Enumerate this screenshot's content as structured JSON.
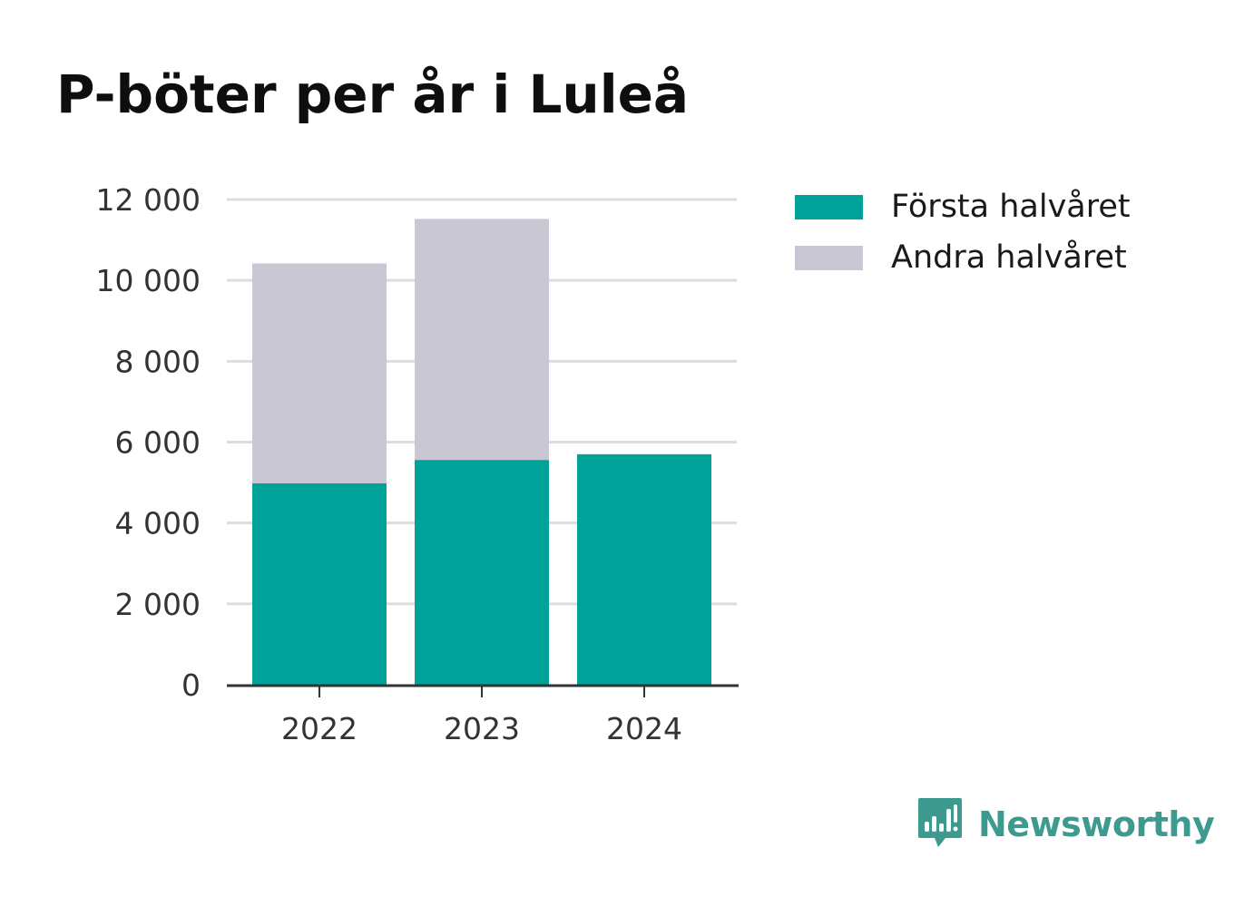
{
  "title": "P-böter per år i Luleå",
  "brand": {
    "name": "Newsworthy",
    "logo_icon": "newsworthy-logo-icon",
    "color": "#3d9a8f"
  },
  "colors": {
    "first_half": "#00a39a",
    "second_half": "#c8c7d3",
    "grid": "#dddddd",
    "axis": "#333333",
    "text": "#333333"
  },
  "chart_data": {
    "type": "bar",
    "stacked": true,
    "title": "P-böter per år i Luleå",
    "categories": [
      "2022",
      "2023",
      "2024"
    ],
    "series": [
      {
        "name": "Första halvåret",
        "values": [
          4980,
          5560,
          5700
        ]
      },
      {
        "name": "Andra halvåret",
        "values": [
          5440,
          5960,
          null
        ]
      }
    ],
    "ylim": [
      0,
      12000
    ],
    "yticks": [
      0,
      2000,
      4000,
      6000,
      8000,
      10000,
      12000
    ],
    "ytick_labels": [
      "0",
      "2 000",
      "4 000",
      "6 000",
      "8 000",
      "10 000",
      "12 000"
    ],
    "xlabel": "",
    "ylabel": "",
    "grid": true,
    "legend_position": "top-right"
  }
}
